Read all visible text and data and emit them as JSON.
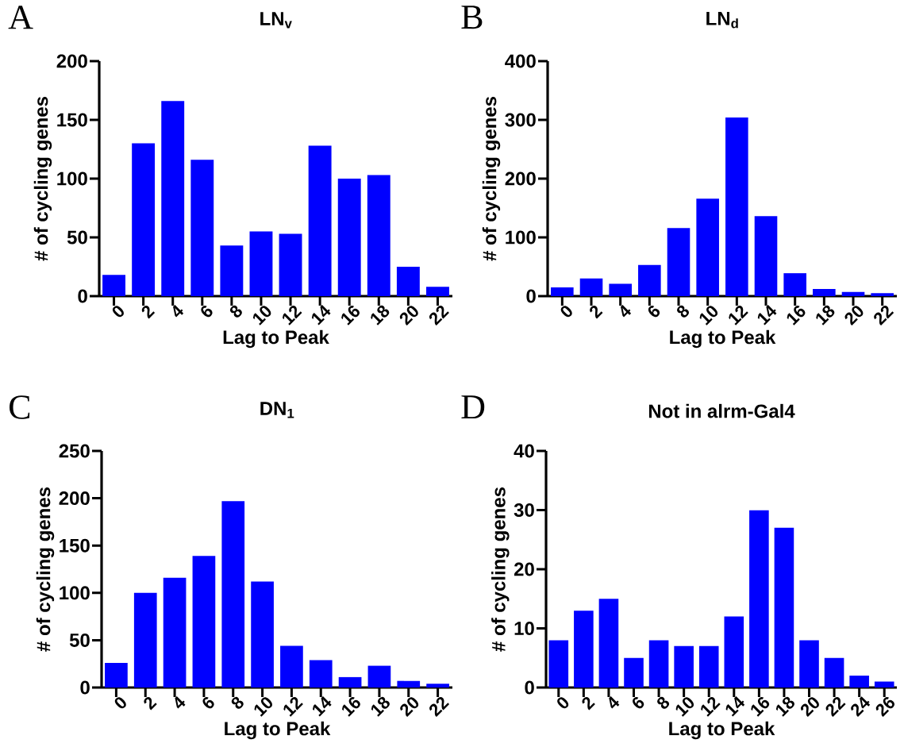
{
  "chart_data": [
    {
      "type": "bar",
      "title": "LN$_{v}$",
      "xlabel": "Lag to Peak",
      "ylabel": "# of cycling genes",
      "annotations": [
        "A"
      ],
      "categories": [
        "0",
        "2",
        "4",
        "6",
        "8",
        "10",
        "12",
        "14",
        "16",
        "18",
        "20",
        "22"
      ],
      "values": [
        18,
        130,
        166,
        116,
        43,
        55,
        53,
        128,
        100,
        103,
        25,
        8
      ],
      "color": "#0000ff",
      "ylim": [
        0,
        200
      ],
      "yticks": [
        0,
        50,
        100,
        150,
        200
      ],
      "grid": false
    },
    {
      "type": "bar",
      "title": "LN$_{d}$",
      "xlabel": "Lag to Peak",
      "ylabel": "# of cycling genes",
      "annotations": [
        "B"
      ],
      "categories": [
        "0",
        "2",
        "4",
        "6",
        "8",
        "10",
        "12",
        "14",
        "16",
        "18",
        "20",
        "22"
      ],
      "values": [
        15,
        30,
        21,
        53,
        116,
        166,
        304,
        136,
        39,
        12,
        7,
        5
      ],
      "color": "#0000ff",
      "ylim": [
        0,
        400
      ],
      "yticks": [
        0,
        100,
        200,
        300,
        400
      ],
      "grid": false
    },
    {
      "type": "bar",
      "title": "DN$_{1}$",
      "xlabel": "Lag to Peak",
      "ylabel": "# of cycling genes",
      "annotations": [
        "C"
      ],
      "categories": [
        "0",
        "2",
        "4",
        "6",
        "8",
        "10",
        "12",
        "14",
        "16",
        "18",
        "20",
        "22"
      ],
      "values": [
        26,
        100,
        116,
        139,
        197,
        112,
        44,
        29,
        11,
        23,
        7,
        4
      ],
      "color": "#0000ff",
      "ylim": [
        0,
        250
      ],
      "yticks": [
        0,
        50,
        100,
        150,
        200,
        250
      ],
      "grid": false
    },
    {
      "type": "bar",
      "title": "Not in alrm-Gal4",
      "xlabel": "Lag to Peak",
      "ylabel": "# of cycling genes",
      "annotations": [
        "D"
      ],
      "categories": [
        "0",
        "2",
        "4",
        "6",
        "8",
        "10",
        "12",
        "14",
        "16",
        "18",
        "20",
        "22",
        "24",
        "26"
      ],
      "values": [
        8,
        13,
        15,
        5,
        8,
        7,
        7,
        12,
        30,
        27,
        8,
        5,
        2,
        1
      ],
      "color": "#0000ff",
      "ylim": [
        0,
        40
      ],
      "yticks": [
        0,
        10,
        20,
        30,
        40
      ],
      "grid": false
    }
  ]
}
